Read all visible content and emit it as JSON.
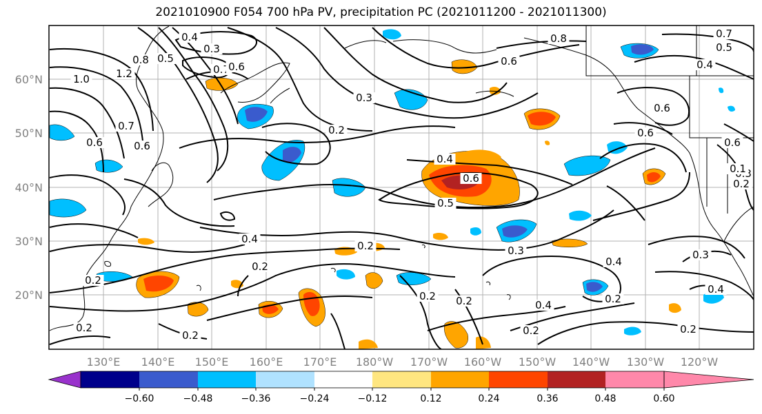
{
  "title": "2021010900 F054 700 hPa PV, precipitation PC (2021011200 - 2021011300)",
  "lat_labels": [
    "60°N",
    "50°N",
    "40°N",
    "30°N",
    "20°N"
  ],
  "lon_labels": [
    "130°E",
    "140°E",
    "150°E",
    "160°E",
    "170°E",
    "180°W",
    "170°W",
    "160°W",
    "150°W",
    "140°W",
    "130°W",
    "120°W"
  ],
  "colorbar": {
    "colors": [
      "#9932cc",
      "#00008b",
      "#3a5bcd",
      "#00bfff",
      "#b0e2ff",
      "#ffffff",
      "#ffe680",
      "#ffa500",
      "#ff4500",
      "#b22222",
      "#ff88aa"
    ],
    "tick_labels": [
      "−0.60",
      "−0.48",
      "−0.36",
      "−0.24",
      "−0.12",
      "0.12",
      "0.24",
      "0.36",
      "0.48",
      "0.60"
    ]
  },
  "contour_labels": [
    "0.4",
    "0.3",
    "0.8",
    "0.5",
    "0.7",
    "0.6",
    "1.0",
    "1.2",
    "0.7",
    "0.6",
    "0.6",
    "0.3",
    "0.2",
    "0.4",
    "0.6",
    "0.5",
    "0.8",
    "0.6",
    "0.7",
    "0.5",
    "0.4",
    "0.6",
    "0.6",
    "0.6",
    "0.4",
    "0.2",
    "0.2",
    "0.3",
    "0.2",
    "0.2",
    "0.4",
    "0.3",
    "0.4",
    "0.4",
    "0.2",
    "0.2",
    "0.2",
    "0.2",
    "0.2",
    "0.2",
    "0.3",
    "0.2",
    "0.1"
  ]
}
